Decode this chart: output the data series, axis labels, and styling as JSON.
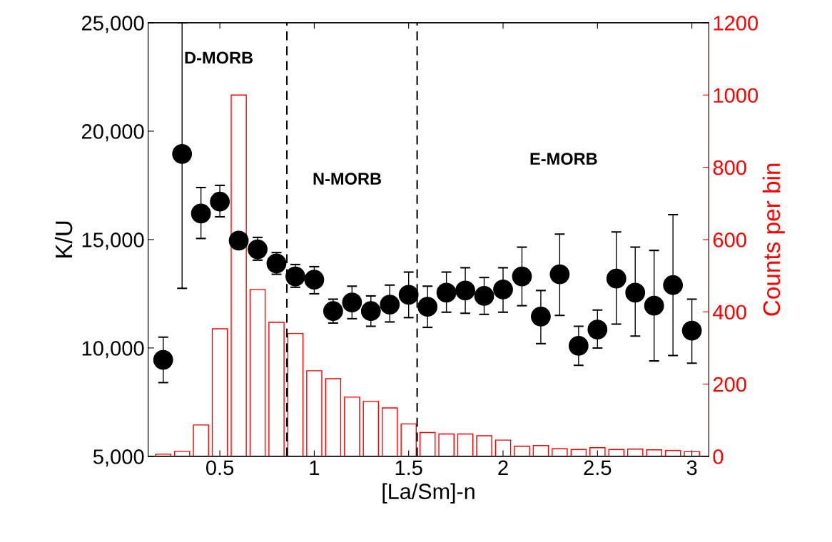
{
  "chart_data": {
    "type": "scatter",
    "xlabel": "[La/Sm]-n",
    "ylabel": "K/U",
    "y2label": "Counts per bin",
    "xlim": [
      0.12,
      3.09
    ],
    "xticks": [
      0.5,
      1,
      1.5,
      2,
      2.5,
      3
    ],
    "ylim": [
      5000,
      25000
    ],
    "yticks": [
      {
        "value": 5000,
        "label": "5,000"
      },
      {
        "value": 10000,
        "label": "10,000"
      },
      {
        "value": 15000,
        "label": "15,000"
      },
      {
        "value": 20000,
        "label": "20,000"
      },
      {
        "value": 25000,
        "label": "25,000"
      }
    ],
    "y2lim": [
      0,
      1200
    ],
    "y2ticks": [
      0,
      200,
      400,
      600,
      800,
      1000,
      1200
    ],
    "grid": false,
    "marker": "circle",
    "series": [
      {
        "type": "bar",
        "axis": "y2",
        "color": "#ff0000",
        "x": [
          0.2,
          0.3,
          0.4,
          0.5,
          0.6,
          0.7,
          0.8,
          0.9,
          1.0,
          1.1,
          1.2,
          1.3,
          1.4,
          1.5,
          1.6,
          1.7,
          1.8,
          1.9,
          2.0,
          2.1,
          2.2,
          2.3,
          2.4,
          2.5,
          2.6,
          2.7,
          2.8,
          2.9,
          3.0
        ],
        "values": [
          6,
          14,
          87,
          353,
          1000,
          462,
          371,
          340,
          237,
          215,
          164,
          152,
          134,
          90,
          66,
          62,
          62,
          57,
          45,
          28,
          30,
          21,
          19,
          24,
          19,
          20,
          18,
          16,
          13
        ]
      },
      {
        "color": "#000000",
        "x": [
          0.2,
          0.3,
          0.4,
          0.5,
          0.6,
          0.7,
          0.8,
          0.9,
          1.0,
          1.1,
          1.2,
          1.3,
          1.4,
          1.5,
          1.6,
          1.7,
          1.8,
          1.9,
          2.0,
          2.1,
          2.2,
          2.3,
          2.4,
          2.5,
          2.6,
          2.7,
          2.8,
          2.9,
          3.0
        ],
        "values": [
          9450,
          18950,
          16200,
          16750,
          14950,
          14550,
          13900,
          13300,
          13150,
          11700,
          12100,
          11700,
          12000,
          12450,
          11900,
          12550,
          12650,
          12400,
          12700,
          13300,
          11450,
          13400,
          10100,
          10850,
          13200,
          12550,
          11950,
          12900,
          10800
        ],
        "errors": [
          [
            8400,
            10500
          ],
          [
            12750,
            25000
          ],
          [
            15050,
            17400
          ],
          [
            16050,
            17500
          ],
          null,
          [
            14050,
            15100
          ],
          [
            13400,
            14400
          ],
          [
            12800,
            13850
          ],
          [
            12500,
            13750
          ],
          [
            11150,
            12250
          ],
          [
            11350,
            12850
          ],
          [
            11000,
            12400
          ],
          [
            11200,
            12900
          ],
          [
            11400,
            13500
          ],
          [
            10950,
            12850
          ],
          [
            11650,
            13500
          ],
          [
            11600,
            13700
          ],
          [
            11550,
            13250
          ],
          [
            11650,
            13700
          ],
          [
            11950,
            14650
          ],
          [
            10200,
            12650
          ],
          [
            11500,
            15250
          ],
          [
            9200,
            11000
          ],
          [
            10000,
            11750
          ],
          [
            11100,
            15350
          ],
          [
            10550,
            14650
          ],
          [
            9400,
            14500
          ],
          [
            9650,
            16150
          ],
          [
            9300,
            12250
          ]
        ]
      }
    ],
    "ref_lines": [
      {
        "axis": "x",
        "value": 0.855,
        "color": "#000000",
        "line_style": "dashed"
      },
      {
        "axis": "x",
        "value": 1.545,
        "color": "#000000",
        "line_style": "dashed"
      }
    ],
    "annotations": [
      "D-MORB",
      "N-MORB",
      "E-MORB"
    ]
  }
}
